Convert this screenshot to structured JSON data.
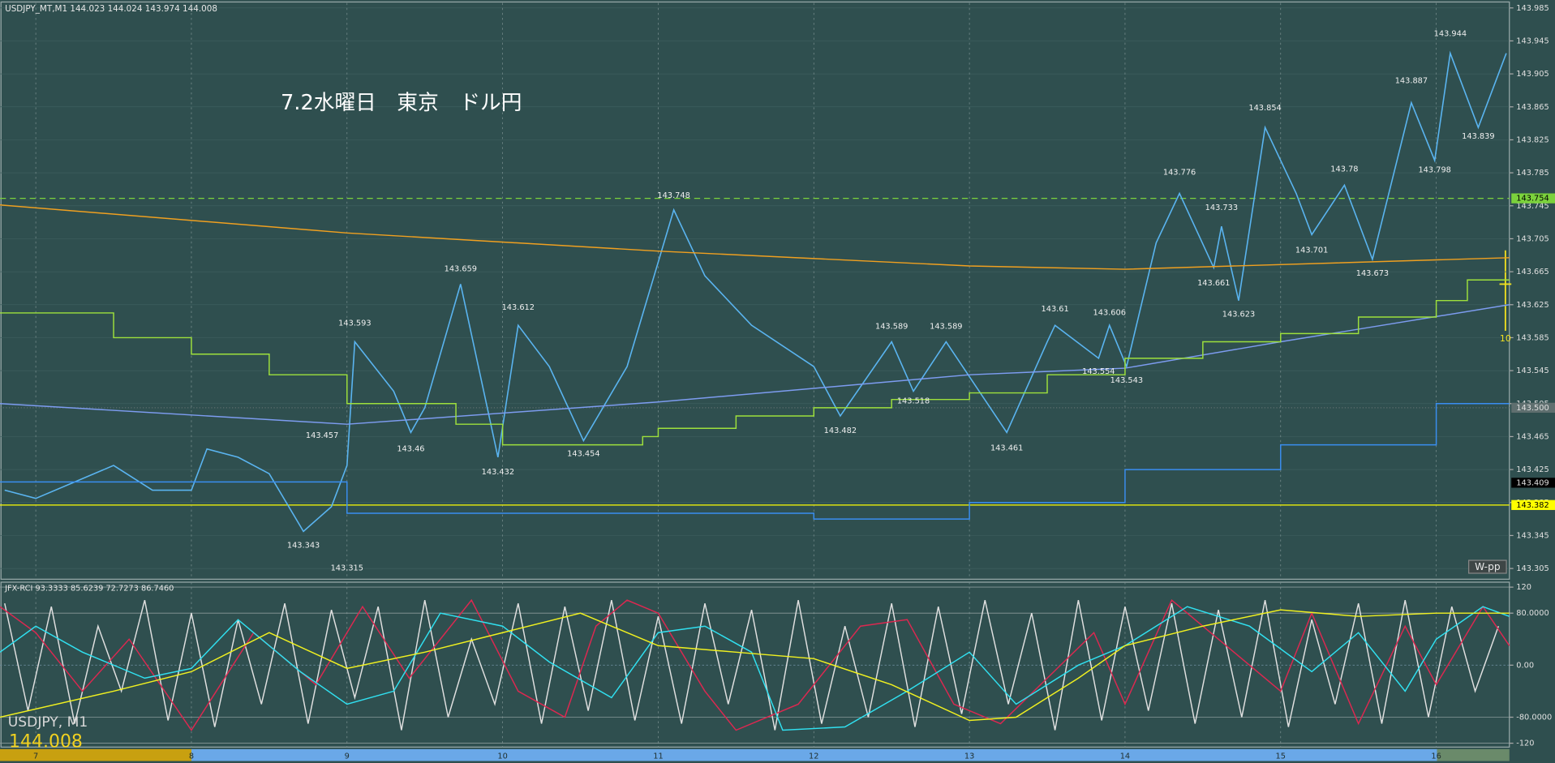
{
  "chart_data": [
    {
      "type": "line",
      "header": "USDJPY_MT,M1  144.023 144.024 143.974 144.008",
      "title": "7.2水曜日　東京　ドル円",
      "badge": "W-pp",
      "marker": "10",
      "symbol": "USDJPY, M1",
      "last_price": 144.008,
      "xlim": [
        6.77,
        16.47
      ],
      "xticks": [
        7,
        8,
        9,
        10,
        11,
        12,
        13,
        14,
        15,
        16
      ],
      "ylim": [
        143.292,
        143.991
      ],
      "yticks": [
        143.985,
        143.945,
        143.905,
        143.865,
        143.825,
        143.785,
        143.745,
        143.705,
        143.665,
        143.625,
        143.585,
        143.545,
        143.505,
        143.465,
        143.425,
        143.385,
        143.345,
        143.305
      ],
      "grid": true,
      "series": [
        {
          "color": "#5ab4f0",
          "step": false,
          "x": [
            6.8,
            7.0,
            7.25,
            7.5,
            7.75,
            8.0,
            8.1,
            8.3,
            8.5,
            8.72,
            8.9,
            9.0,
            9.05,
            9.3,
            9.41,
            9.5,
            9.73,
            9.97,
            10.1,
            10.3,
            10.52,
            10.8,
            11.1,
            11.3,
            11.6,
            12.0,
            12.17,
            12.5,
            12.64,
            12.85,
            13.24,
            13.5,
            13.55,
            13.83,
            13.9,
            14.01,
            14.2,
            14.35,
            14.57,
            14.62,
            14.73,
            14.9,
            15.1,
            15.2,
            15.41,
            15.59,
            15.84,
            15.99,
            16.09,
            16.27,
            16.45
          ],
          "values": [
            143.4,
            143.39,
            143.41,
            143.43,
            143.4,
            143.4,
            143.45,
            143.44,
            143.42,
            143.35,
            143.38,
            143.43,
            143.58,
            143.52,
            143.47,
            143.5,
            143.65,
            143.44,
            143.6,
            143.55,
            143.46,
            143.55,
            143.74,
            143.66,
            143.6,
            143.55,
            143.49,
            143.58,
            143.52,
            143.58,
            143.47,
            143.58,
            143.6,
            143.56,
            143.6,
            143.55,
            143.7,
            143.76,
            143.67,
            143.72,
            143.63,
            143.84,
            143.76,
            143.71,
            143.77,
            143.68,
            143.87,
            143.8,
            143.93,
            143.84,
            143.93
          ]
        },
        {
          "color": "#f0a020",
          "step": false,
          "x": [
            6.77,
            9,
            11,
            13,
            14,
            16.47
          ],
          "values": [
            143.746,
            143.712,
            143.69,
            143.672,
            143.668,
            143.682
          ]
        },
        {
          "color": "#7d9cf0",
          "step": false,
          "x": [
            6.77,
            9,
            11,
            13,
            14,
            15,
            16.47
          ],
          "values": [
            143.505,
            143.48,
            143.507,
            143.54,
            143.548,
            143.58,
            143.625
          ]
        },
        {
          "color": "#3a8ef0",
          "step": true,
          "x": [
            6.77,
            9,
            12,
            13,
            14,
            15,
            16,
            16.47
          ],
          "values": [
            143.41,
            143.372,
            143.365,
            143.385,
            143.425,
            143.455,
            143.505,
            143.505
          ]
        },
        {
          "color": "#9ee03c",
          "step": true,
          "x": [
            6.77,
            7.5,
            8,
            8.5,
            9,
            9.7,
            10,
            10.9,
            11,
            11.5,
            12,
            12.5,
            13,
            13.5,
            14,
            14.5,
            15,
            15.5,
            16,
            16.2,
            16.47
          ],
          "values": [
            143.615,
            143.585,
            143.565,
            143.54,
            143.505,
            143.48,
            143.455,
            143.465,
            143.475,
            143.49,
            143.5,
            143.51,
            143.518,
            143.54,
            143.56,
            143.58,
            143.59,
            143.61,
            143.63,
            143.655,
            143.655
          ]
        }
      ],
      "annotations": [
        {
          "x": 9.05,
          "value": 143.593,
          "side": "high"
        },
        {
          "x": 9.73,
          "value": 143.659,
          "side": "high"
        },
        {
          "x": 10.1,
          "value": 143.612,
          "side": "high"
        },
        {
          "x": 8.84,
          "value": 143.457,
          "side": "high"
        },
        {
          "x": 9.41,
          "value": 143.46,
          "side": "low"
        },
        {
          "x": 9.97,
          "value": 143.432,
          "side": "low"
        },
        {
          "x": 10.52,
          "value": 143.454,
          "side": "low"
        },
        {
          "x": 8.72,
          "value": 143.343,
          "side": "low"
        },
        {
          "x": 9.0,
          "value": 143.315,
          "side": "low"
        },
        {
          "x": 11.1,
          "value": 143.748,
          "side": "high"
        },
        {
          "x": 12.5,
          "value": 143.589,
          "side": "high"
        },
        {
          "x": 12.85,
          "value": 143.589,
          "side": "high"
        },
        {
          "x": 12.17,
          "value": 143.482,
          "side": "low"
        },
        {
          "x": 12.64,
          "value": 143.518,
          "side": "low"
        },
        {
          "x": 13.24,
          "value": 143.461,
          "side": "low"
        },
        {
          "x": 13.55,
          "value": 143.61,
          "side": "high"
        },
        {
          "x": 13.9,
          "value": 143.606,
          "side": "high"
        },
        {
          "x": 13.83,
          "value": 143.554,
          "side": "low"
        },
        {
          "x": 14.01,
          "value": 143.543,
          "side": "low"
        },
        {
          "x": 14.35,
          "value": 143.776,
          "side": "high"
        },
        {
          "x": 14.62,
          "value": 143.733,
          "side": "high"
        },
        {
          "x": 14.57,
          "value": 143.661,
          "side": "low"
        },
        {
          "x": 14.73,
          "value": 143.623,
          "side": "low"
        },
        {
          "x": 14.9,
          "value": 143.854,
          "side": "high"
        },
        {
          "x": 15.2,
          "value": 143.701,
          "side": "low"
        },
        {
          "x": 15.41,
          "value": 143.78,
          "side": "high"
        },
        {
          "x": 15.59,
          "value": 143.673,
          "side": "low"
        },
        {
          "x": 15.84,
          "value": 143.887,
          "side": "high"
        },
        {
          "x": 16.09,
          "value": 143.944,
          "side": "high"
        },
        {
          "x": 16.27,
          "value": 143.839,
          "side": "low"
        },
        {
          "x": 15.99,
          "value": 143.798,
          "side": "low"
        }
      ],
      "price_tags": [
        {
          "value": 143.754,
          "color": "#7bd23c",
          "style": "dashed"
        },
        {
          "value": 143.5,
          "label": "143.500",
          "color": "#5f6f6f",
          "style": "dotted"
        },
        {
          "value": 143.409,
          "color": "#000000",
          "style": "none"
        },
        {
          "value": 143.382,
          "color": "#ffff00",
          "style": "solid"
        }
      ]
    },
    {
      "type": "line",
      "title": "JFX-RCI 93.3333 85.6239 72.7273 86.7460",
      "xlim": [
        6.77,
        16.47
      ],
      "ylim": [
        -126,
        127.6
      ],
      "yticks": [
        120,
        {
          "value": 80,
          "label": "80.0000"
        },
        {
          "value": 0,
          "label": "0.00"
        },
        {
          "value": -80,
          "label": "-80.0000"
        },
        -120
      ],
      "series": [
        {
          "color": "#e0e0e0",
          "x": [
            6.8,
            6.95,
            7.1,
            7.25,
            7.4,
            7.55,
            7.7,
            7.85,
            8,
            8.15,
            8.3,
            8.45,
            8.6,
            8.75,
            8.9,
            9.05,
            9.2,
            9.35,
            9.5,
            9.65,
            9.8,
            9.95,
            10.1,
            10.25,
            10.4,
            10.55,
            10.7,
            10.85,
            11,
            11.15,
            11.3,
            11.45,
            11.6,
            11.75,
            11.9,
            12.05,
            12.2,
            12.35,
            12.5,
            12.65,
            12.8,
            12.95,
            13.1,
            13.25,
            13.4,
            13.55,
            13.7,
            13.85,
            14,
            14.15,
            14.3,
            14.45,
            14.6,
            14.75,
            14.9,
            15.05,
            15.2,
            15.35,
            15.5,
            15.65,
            15.8,
            15.95,
            16.1,
            16.25,
            16.4
          ],
          "values": [
            95,
            -70,
            90,
            -90,
            60,
            -40,
            100,
            -85,
            80,
            -95,
            70,
            -60,
            95,
            -90,
            85,
            -50,
            90,
            -100,
            100,
            -80,
            40,
            -60,
            95,
            -90,
            90,
            -70,
            100,
            -85,
            75,
            -90,
            95,
            -60,
            85,
            -100,
            100,
            -90,
            60,
            -80,
            95,
            -95,
            90,
            -75,
            100,
            -60,
            80,
            -100,
            100,
            -85,
            90,
            -70,
            95,
            -90,
            85,
            -80,
            100,
            -95,
            70,
            -60,
            95,
            -90,
            100,
            -80,
            90,
            -40,
            60
          ]
        },
        {
          "color": "#dc2850",
          "x": [
            6.77,
            7,
            7.3,
            7.6,
            8,
            8.4,
            8.8,
            9.1,
            9.4,
            9.8,
            10.1,
            10.4,
            10.6,
            10.8,
            11,
            11.3,
            11.5,
            11.9,
            12.3,
            12.6,
            12.9,
            13.2,
            13.5,
            13.8,
            14,
            14.3,
            14.7,
            15,
            15.2,
            15.5,
            15.8,
            16,
            16.3,
            16.47
          ],
          "values": [
            90,
            50,
            -40,
            40,
            -100,
            50,
            -30,
            90,
            -20,
            100,
            -40,
            -80,
            60,
            100,
            80,
            -40,
            -100,
            -60,
            60,
            70,
            -60,
            -90,
            -20,
            50,
            -60,
            100,
            20,
            -40,
            80,
            -90,
            60,
            -30,
            90,
            30
          ]
        },
        {
          "color": "#30e0f0",
          "x": [
            6.77,
            7,
            7.3,
            7.7,
            8,
            8.3,
            8.7,
            9,
            9.3,
            9.6,
            10,
            10.3,
            10.7,
            11,
            11.3,
            11.6,
            11.8,
            12.2,
            12.6,
            13,
            13.3,
            13.7,
            14,
            14.4,
            14.8,
            15.2,
            15.5,
            15.8,
            16,
            16.3,
            16.47
          ],
          "values": [
            20,
            60,
            20,
            -20,
            -5,
            70,
            -10,
            -60,
            -40,
            80,
            60,
            5,
            -50,
            50,
            60,
            20,
            -100,
            -95,
            -40,
            20,
            -60,
            0,
            30,
            90,
            60,
            -10,
            50,
            -40,
            40,
            90,
            75
          ]
        },
        {
          "color": "#f0f020",
          "x": [
            6.77,
            7.5,
            8,
            8.5,
            9,
            9.5,
            10,
            10.5,
            11,
            11.5,
            12,
            12.5,
            13,
            13.3,
            13.7,
            14,
            14.5,
            15,
            15.5,
            16,
            16.47
          ],
          "values": [
            -80,
            -40,
            -10,
            50,
            -5,
            20,
            50,
            80,
            30,
            20,
            10,
            -30,
            -85,
            -80,
            -20,
            30,
            60,
            85,
            75,
            80,
            80
          ]
        }
      ]
    }
  ]
}
